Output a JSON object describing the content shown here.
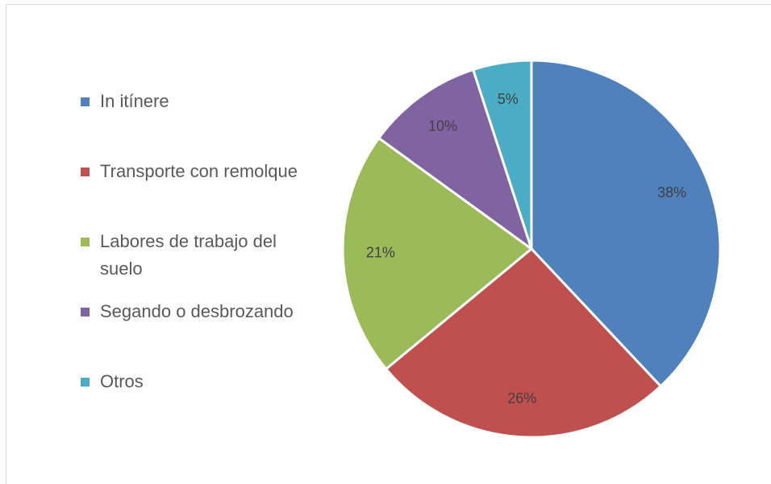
{
  "chart_data": {
    "type": "pie",
    "categories": [
      "In itínere",
      "Transporte con remolque",
      "Labores de trabajo del suelo",
      "Segando o desbrozando",
      "Otros"
    ],
    "values": [
      38,
      26,
      21,
      10,
      5
    ],
    "value_labels": [
      "38%",
      "26%",
      "21%",
      "10%",
      "5%"
    ],
    "colors": [
      "#4f81bd",
      "#c0504d",
      "#9bbb59",
      "#8064a2",
      "#4bacc6"
    ],
    "legend": "left"
  }
}
